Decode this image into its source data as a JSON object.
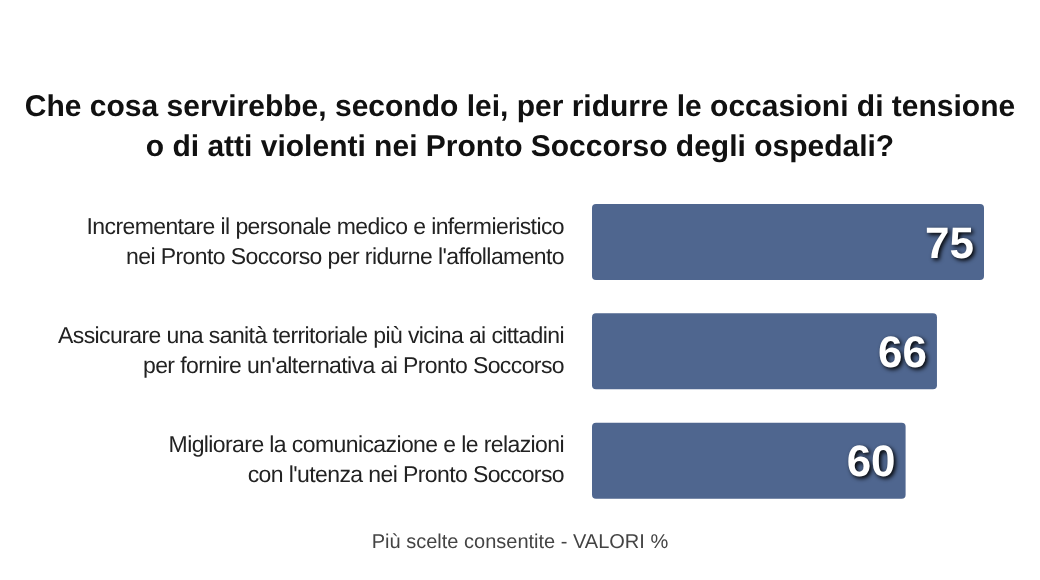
{
  "chart_data": {
    "type": "bar",
    "orientation": "horizontal",
    "title": "Che cosa servirebbe, secondo lei, per ridurre le occasioni di tensione\no di atti violenti nei Pronto Soccorso degli ospedali?",
    "categories": [
      "Incrementare il personale medico e infermieristico\nnei Pronto Soccorso per ridurne l'affollamento",
      "Assicurare una sanità territoriale più vicina ai cittadini\nper fornire un'alternativa ai Pronto Soccorso",
      "Migliorare la comunicazione e le relazioni\ncon l'utenza nei Pronto Soccorso"
    ],
    "values": [
      75,
      66,
      60
    ],
    "color": "#4f668f",
    "data_labels": true,
    "annotations": [
      "Più scelte consentite  - VALORI %"
    ]
  }
}
